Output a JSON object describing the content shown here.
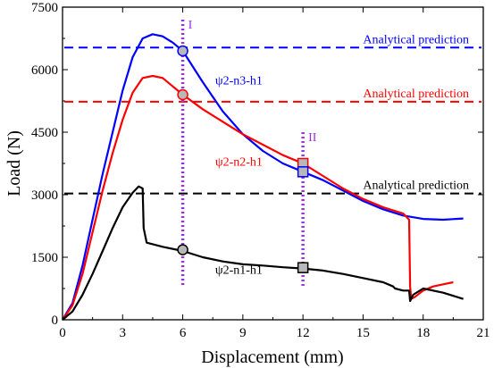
{
  "chart_data": {
    "type": "line",
    "xlabel": "Displacement (mm)",
    "ylabel": "Load (N)",
    "xlim": [
      0,
      21
    ],
    "ylim": [
      0,
      7500
    ],
    "xticks": [
      0,
      3,
      6,
      9,
      12,
      15,
      18,
      21
    ],
    "yticks": [
      0,
      1500,
      3000,
      4500,
      6000,
      7500
    ],
    "grid": false,
    "series": [
      {
        "name": "ψ2-n3-h1",
        "color": "#0000ff",
        "x": [
          0,
          0.5,
          1,
          1.5,
          2,
          2.5,
          3,
          3.5,
          4,
          4.5,
          5,
          5.5,
          6,
          7,
          8,
          9,
          10,
          11,
          12,
          13,
          14,
          15,
          16,
          17,
          18,
          19,
          20
        ],
        "y": [
          0,
          400,
          1300,
          2400,
          3500,
          4500,
          5500,
          6300,
          6750,
          6850,
          6800,
          6650,
          6450,
          5700,
          5000,
          4450,
          4050,
          3750,
          3550,
          3350,
          3100,
          2850,
          2650,
          2500,
          2420,
          2400,
          2430
        ]
      },
      {
        "name": "ψ2-n2-h1",
        "color": "#ff0000",
        "x": [
          0,
          0.5,
          1,
          1.5,
          2,
          2.5,
          3,
          3.5,
          4,
          4.5,
          5,
          5.5,
          6,
          7,
          8,
          9,
          10,
          11,
          12,
          13,
          14,
          15,
          16,
          17,
          17.3,
          17.35,
          17.4,
          17.6,
          18,
          18.5,
          19,
          19.5
        ],
        "y": [
          0,
          350,
          1100,
          2100,
          3100,
          4000,
          4800,
          5450,
          5800,
          5850,
          5800,
          5600,
          5400,
          5050,
          4750,
          4450,
          4200,
          3950,
          3750,
          3450,
          3150,
          2900,
          2700,
          2550,
          2400,
          800,
          500,
          550,
          700,
          800,
          850,
          900
        ]
      },
      {
        "name": "ψ2-n1-h1",
        "color": "#000000",
        "x": [
          0,
          0.5,
          1,
          1.5,
          2,
          2.5,
          3,
          3.5,
          3.8,
          4,
          4.05,
          4.2,
          5,
          6,
          7,
          8,
          9,
          10,
          11,
          12,
          13,
          14,
          15,
          16,
          16.5,
          16.6,
          17,
          17.3,
          17.35,
          17.5,
          18,
          19,
          20
        ],
        "y": [
          0,
          200,
          600,
          1100,
          1650,
          2200,
          2700,
          3050,
          3200,
          3150,
          2200,
          1850,
          1750,
          1650,
          1500,
          1400,
          1330,
          1300,
          1260,
          1230,
          1180,
          1100,
          1000,
          900,
          800,
          750,
          700,
          700,
          450,
          600,
          750,
          650,
          500
        ]
      }
    ],
    "reference_lines": [
      {
        "label": "Analytical prediction",
        "y": 6530,
        "color": "#0000ff"
      },
      {
        "label": "Analytical prediction",
        "y": 5230,
        "color": "#ff0000"
      },
      {
        "label": "Analytical prediction",
        "y": 3030,
        "color": "#000000"
      }
    ],
    "vertical_markers": [
      {
        "label": "I",
        "x": 6,
        "y_top": 7200
      },
      {
        "label": "II",
        "x": 12,
        "y_top": 4500
      }
    ],
    "markers": [
      {
        "shape": "circle",
        "x": 6,
        "y": 6450,
        "edge": "#0000ff"
      },
      {
        "shape": "circle",
        "x": 6,
        "y": 5400,
        "edge": "#ff0000"
      },
      {
        "shape": "circle",
        "x": 6,
        "y": 1680,
        "edge": "#000000"
      },
      {
        "shape": "square",
        "x": 12,
        "y": 3750,
        "edge": "#ff0000"
      },
      {
        "shape": "square",
        "x": 12,
        "y": 3550,
        "edge": "#0000ff"
      },
      {
        "shape": "square",
        "x": 12,
        "y": 1250,
        "edge": "#000000"
      }
    ],
    "series_labels": [
      {
        "text": "ψ2-n3-h1",
        "x": 8.8,
        "y": 5650,
        "color": "#0000ff"
      },
      {
        "text": "ψ2-n2-h1",
        "x": 8.8,
        "y": 3700,
        "color": "#ff0000"
      },
      {
        "text": "ψ2-n1-h1",
        "x": 8.8,
        "y": 1100,
        "color": "#000000"
      }
    ]
  }
}
